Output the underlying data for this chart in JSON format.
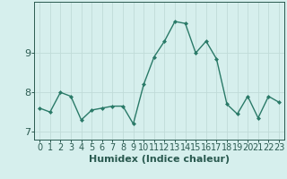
{
  "x": [
    0,
    1,
    2,
    3,
    4,
    5,
    6,
    7,
    8,
    9,
    10,
    11,
    12,
    13,
    14,
    15,
    16,
    17,
    18,
    19,
    20,
    21,
    22,
    23
  ],
  "y": [
    7.6,
    7.5,
    8.0,
    7.9,
    7.3,
    7.55,
    7.6,
    7.65,
    7.65,
    7.2,
    8.2,
    8.9,
    9.3,
    9.8,
    9.75,
    9.0,
    9.3,
    8.85,
    7.7,
    7.45,
    7.9,
    7.35,
    7.9,
    7.75
  ],
  "line_color": "#2a7a68",
  "marker": "D",
  "markersize": 2.0,
  "linewidth": 1.0,
  "xlabel": "Humidex (Indice chaleur)",
  "yticks": [
    7,
    8,
    9
  ],
  "ylim": [
    6.8,
    10.3
  ],
  "xlim": [
    -0.5,
    23.5
  ],
  "bg_color": "#d6efed",
  "grid_color": "#c0dbd8",
  "xlabel_fontsize": 8,
  "tick_fontsize": 7
}
